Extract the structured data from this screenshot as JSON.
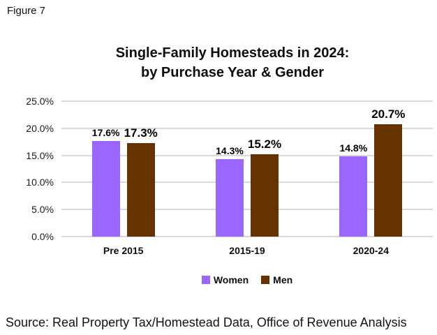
{
  "page": {
    "figure_label": "Figure 7",
    "source_note": "Source: Real Property Tax/Homestead Data, Office of Revenue Analysis",
    "background_color": "#FFFFFF"
  },
  "chart_data": {
    "type": "bar",
    "title": "Single-Family Homesteads in 2024: by Purchase Year & Gender",
    "title_lines": [
      "Single-Family Homesteads in 2024:",
      "by Purchase Year & Gender"
    ],
    "categories": [
      "Pre 2015",
      "2015-19",
      "2020-24"
    ],
    "series": [
      {
        "name": "Women",
        "color": "#9966FF",
        "values": [
          17.6,
          14.3,
          14.8
        ],
        "data_labels": [
          "17.6%",
          "14.3%",
          "14.8%"
        ]
      },
      {
        "name": "Men",
        "color": "#663300",
        "values": [
          17.3,
          15.2,
          20.7
        ],
        "data_labels": [
          "17.3%",
          "15.2%",
          "20.7%"
        ]
      }
    ],
    "xlabel": "",
    "ylabel": "",
    "ylim": [
      0,
      25
    ],
    "ytick_step": 5,
    "ytick_labels": [
      "0.0%",
      "5.0%",
      "10.0%",
      "15.0%",
      "20.0%",
      "25.0%"
    ],
    "grid": true,
    "gridline_color": "#D9D9D9",
    "legend_position": "bottom"
  }
}
